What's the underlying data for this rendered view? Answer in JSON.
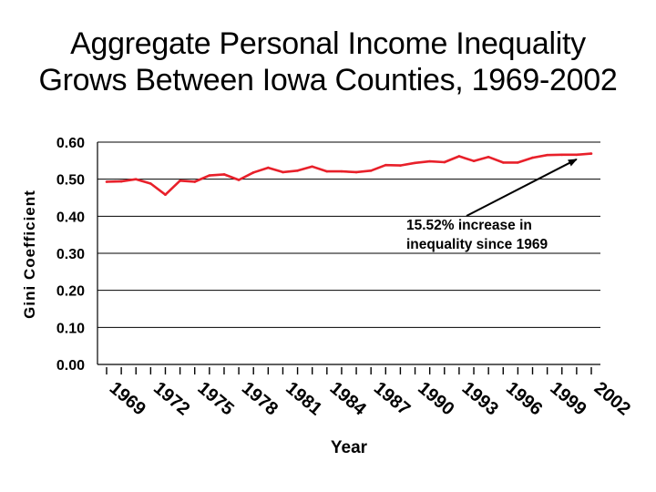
{
  "chart_data": {
    "type": "line",
    "title_lines": [
      "Aggregate Personal Income Inequality",
      "Grows Between Iowa Counties, 1969-2002"
    ],
    "xlabel": "Year",
    "ylabel": "Gini Coefficient",
    "ylim": [
      0,
      0.6
    ],
    "y_ticks": [
      "0.00",
      "0.10",
      "0.20",
      "0.30",
      "0.40",
      "0.50",
      "0.60"
    ],
    "x_tick_labels": [
      "1969",
      "1972",
      "1975",
      "1978",
      "1981",
      "1984",
      "1987",
      "1990",
      "1993",
      "1996",
      "1999",
      "2002"
    ],
    "grid": "horizontal",
    "line_color": "#e8202a",
    "series": [
      {
        "x": [
          1969,
          1970,
          1971,
          1972,
          1973,
          1974,
          1975,
          1976,
          1977,
          1978,
          1979,
          1980,
          1981,
          1982,
          1983,
          1984,
          1985,
          1986,
          1987,
          1988,
          1989,
          1990,
          1991,
          1992,
          1993,
          1994,
          1995,
          1996,
          1997,
          1998,
          1999,
          2000,
          2001,
          2002
        ],
        "values": [
          0.493,
          0.494,
          0.5,
          0.488,
          0.458,
          0.496,
          0.493,
          0.51,
          0.513,
          0.498,
          0.518,
          0.531,
          0.519,
          0.523,
          0.534,
          0.521,
          0.521,
          0.519,
          0.523,
          0.538,
          0.537,
          0.544,
          0.548,
          0.546,
          0.562,
          0.549,
          0.56,
          0.545,
          0.545,
          0.558,
          0.565,
          0.566,
          0.566,
          0.569
        ]
      }
    ],
    "annotation": {
      "lines": [
        "15.52% increase in",
        "inequality since 1969"
      ],
      "arrow_to_x": 2001
    }
  }
}
